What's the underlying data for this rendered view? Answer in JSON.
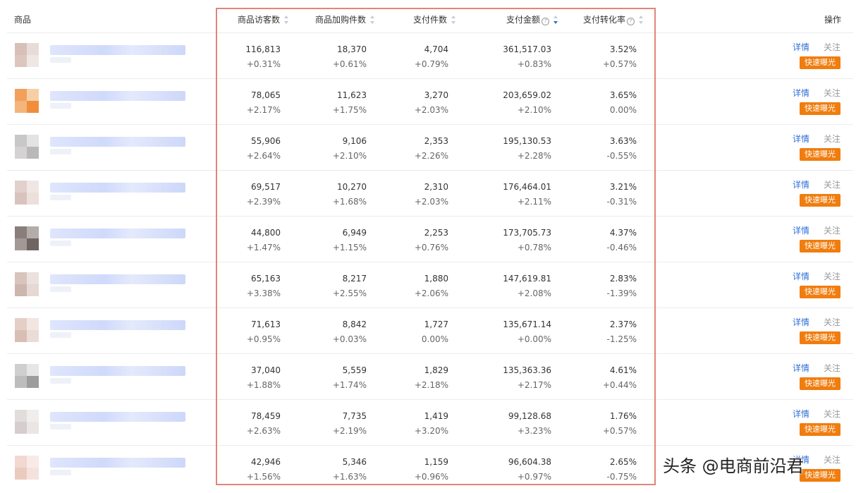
{
  "header": {
    "product": "商品",
    "visitors": "商品访客数",
    "cart": "商品加购件数",
    "paid_items": "支付件数",
    "paid_amount": "支付金额",
    "conversion": "支付转化率",
    "action": "操作"
  },
  "actions": {
    "detail": "详情",
    "follow": "关注",
    "expose": "快速曝光"
  },
  "rows": [
    {
      "visitors": "116,813",
      "visitors_change": "+0.31%",
      "cart": "18,370",
      "cart_change": "+0.61%",
      "paid_items": "4,704",
      "paid_items_change": "+0.79%",
      "paid_amount": "361,517.03",
      "paid_amount_change": "+0.83%",
      "conversion": "3.52%",
      "conversion_change": "+0.57%"
    },
    {
      "visitors": "78,065",
      "visitors_change": "+2.17%",
      "cart": "11,623",
      "cart_change": "+1.75%",
      "paid_items": "3,270",
      "paid_items_change": "+2.03%",
      "paid_amount": "203,659.02",
      "paid_amount_change": "+2.10%",
      "conversion": "3.65%",
      "conversion_change": "0.00%"
    },
    {
      "visitors": "55,906",
      "visitors_change": "+2.64%",
      "cart": "9,106",
      "cart_change": "+2.10%",
      "paid_items": "2,353",
      "paid_items_change": "+2.26%",
      "paid_amount": "195,130.53",
      "paid_amount_change": "+2.28%",
      "conversion": "3.63%",
      "conversion_change": "-0.55%"
    },
    {
      "visitors": "69,517",
      "visitors_change": "+2.39%",
      "cart": "10,270",
      "cart_change": "+1.68%",
      "paid_items": "2,310",
      "paid_items_change": "+2.03%",
      "paid_amount": "176,464.01",
      "paid_amount_change": "+2.11%",
      "conversion": "3.21%",
      "conversion_change": "-0.31%"
    },
    {
      "visitors": "44,800",
      "visitors_change": "+1.47%",
      "cart": "6,949",
      "cart_change": "+1.15%",
      "paid_items": "2,253",
      "paid_items_change": "+0.76%",
      "paid_amount": "173,705.73",
      "paid_amount_change": "+0.78%",
      "conversion": "4.37%",
      "conversion_change": "-0.46%"
    },
    {
      "visitors": "65,163",
      "visitors_change": "+3.38%",
      "cart": "8,217",
      "cart_change": "+2.55%",
      "paid_items": "1,880",
      "paid_items_change": "+2.06%",
      "paid_amount": "147,619.81",
      "paid_amount_change": "+2.08%",
      "conversion": "2.83%",
      "conversion_change": "-1.39%"
    },
    {
      "visitors": "71,613",
      "visitors_change": "+0.95%",
      "cart": "8,842",
      "cart_change": "+0.03%",
      "paid_items": "1,727",
      "paid_items_change": "0.00%",
      "paid_amount": "135,671.14",
      "paid_amount_change": "+0.00%",
      "conversion": "2.37%",
      "conversion_change": "-1.25%"
    },
    {
      "visitors": "37,040",
      "visitors_change": "+1.88%",
      "cart": "5,559",
      "cart_change": "+1.74%",
      "paid_items": "1,829",
      "paid_items_change": "+2.18%",
      "paid_amount": "135,363.36",
      "paid_amount_change": "+2.17%",
      "conversion": "4.61%",
      "conversion_change": "+0.44%"
    },
    {
      "visitors": "78,459",
      "visitors_change": "+2.63%",
      "cart": "7,735",
      "cart_change": "+2.19%",
      "paid_items": "1,419",
      "paid_items_change": "+3.20%",
      "paid_amount": "99,128.68",
      "paid_amount_change": "+3.23%",
      "conversion": "1.76%",
      "conversion_change": "+0.57%"
    },
    {
      "visitors": "42,946",
      "visitors_change": "+1.56%",
      "cart": "5,346",
      "cart_change": "+1.63%",
      "paid_items": "1,159",
      "paid_items_change": "+0.96%",
      "paid_amount": "96,604.38",
      "paid_amount_change": "+0.97%",
      "conversion": "2.65%",
      "conversion_change": "-0.75%"
    }
  ],
  "thumb_colors": [
    [
      "#d8c0b8",
      "#e8dcd8",
      "#dcc6bd",
      "#efe7e4"
    ],
    [
      "#f2a05c",
      "#f7cfa7",
      "#f3b57a",
      "#f08e3c"
    ],
    [
      "#c8c8c8",
      "#e3e3e3",
      "#d4d2d2",
      "#b9b9b9"
    ],
    [
      "#e2d0cc",
      "#f0e6e4",
      "#d9c3be",
      "#ece0dd"
    ],
    [
      "#8a7e7a",
      "#b4aca9",
      "#a39895",
      "#6f6562"
    ],
    [
      "#d8c4bc",
      "#ece2dd",
      "#cdb6ad",
      "#e6d8d2"
    ],
    [
      "#e4cfc6",
      "#f2e6e1",
      "#d9beb3",
      "#eaddd7"
    ],
    [
      "#cfcfcf",
      "#e6e6e6",
      "#bdbdbd",
      "#9d9d9d"
    ],
    [
      "#e2dcdc",
      "#f1eded",
      "#d6cdcd",
      "#ebe5e5"
    ],
    [
      "#f1d8d0",
      "#f8ebe7",
      "#eccbbf",
      "#f5e2dc"
    ]
  ],
  "colors": {
    "link": "#2f6fd6",
    "expose_button": "#f07d0e",
    "highlight_border": "#e0857a"
  },
  "watermark": "头条 @电商前沿君"
}
